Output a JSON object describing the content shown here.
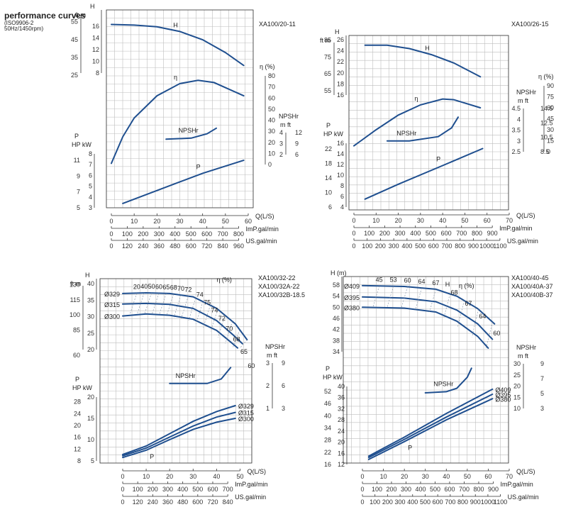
{
  "header": {
    "title": "performance curves",
    "standard": "(ISO9906-2",
    "condition": "50Hz/1450rpm)"
  },
  "chart_data": [
    {
      "type": "line",
      "model": [
        "XA100/20-11"
      ],
      "q_axis": {
        "label": "Q(L/S)",
        "min": 0,
        "max": 60,
        "ticks": [
          0,
          10,
          20,
          30,
          40,
          50,
          60
        ]
      },
      "imp_axis": {
        "label": "ImP.gal/min",
        "ticks": [
          0,
          100,
          200,
          300,
          400,
          500,
          600,
          700,
          800
        ]
      },
      "us_axis": {
        "label": "US.gal/min",
        "ticks": [
          0,
          120,
          240,
          360,
          480,
          600,
          720,
          840,
          960
        ]
      },
      "h_axis": {
        "title": "H",
        "units": [
          "ft",
          "m"
        ],
        "m_ticks": [
          8,
          10,
          12,
          14,
          16
        ],
        "ft_ticks": [
          25,
          35,
          45,
          55
        ]
      },
      "eff_axis": {
        "title": "η (%)",
        "ticks": [
          0,
          10,
          20,
          30,
          40,
          50,
          60,
          70,
          80
        ]
      },
      "p_axis": {
        "title": "P",
        "units": [
          "HP",
          "kW"
        ],
        "kw_ticks": [
          3,
          4,
          5,
          6,
          7,
          8
        ],
        "hp_ticks": [
          5,
          7,
          9,
          11
        ]
      },
      "npsh_axis": {
        "title": "NPSHr",
        "units": [
          "m",
          "ft"
        ],
        "m_ticks": [
          2,
          3,
          4
        ],
        "ft_ticks": [
          6,
          9,
          12
        ]
      },
      "curves": {
        "H": [
          [
            0,
            16.3
          ],
          [
            10,
            16.2
          ],
          [
            20,
            15.9
          ],
          [
            30,
            15.1
          ],
          [
            40,
            13.7
          ],
          [
            50,
            11.5
          ],
          [
            58,
            9.3
          ]
        ],
        "eff": [
          [
            0,
            1
          ],
          [
            5,
            25
          ],
          [
            10,
            42
          ],
          [
            20,
            62
          ],
          [
            30,
            73
          ],
          [
            38,
            76
          ],
          [
            45,
            74
          ],
          [
            58,
            62
          ]
        ],
        "npsh": [
          [
            24,
            3.4
          ],
          [
            35,
            3.5
          ],
          [
            42,
            3.9
          ],
          [
            46,
            4.4
          ]
        ],
        "P": [
          [
            5,
            3.4
          ],
          [
            20,
            4.6
          ],
          [
            40,
            6.2
          ],
          [
            58,
            7.4
          ]
        ]
      },
      "curve_labels": {
        "H": "H",
        "eff": "η",
        "npsh": "NPSHr",
        "P": "P"
      }
    },
    {
      "type": "line",
      "model": [
        "XA100/26-15"
      ],
      "q_axis": {
        "label": "Q(L/S)",
        "min": 0,
        "max": 70,
        "ticks": [
          0,
          10,
          20,
          30,
          40,
          50,
          60,
          70
        ]
      },
      "imp_axis": {
        "label": "ImP.gal/min",
        "ticks": [
          0,
          100,
          200,
          300,
          400,
          500,
          600,
          700,
          800,
          900
        ]
      },
      "us_axis": {
        "label": "US.gal/min",
        "ticks": [
          0,
          100,
          200,
          300,
          400,
          500,
          600,
          700,
          800,
          900,
          1000,
          1100
        ]
      },
      "h_axis": {
        "title": "H",
        "units": [
          "ft",
          "m"
        ],
        "m_ticks": [
          16,
          18,
          20,
          22,
          24,
          26
        ],
        "ft_ticks": [
          55,
          65,
          75,
          85
        ]
      },
      "eff_axis": {
        "title": "η (%)",
        "ticks": [
          0,
          15,
          30,
          45,
          60,
          75,
          90
        ]
      },
      "p_axis": {
        "title": "P",
        "units": [
          "HP",
          "kW"
        ],
        "kw_ticks": [
          4,
          6,
          8,
          10,
          12,
          14,
          16
        ],
        "hp_ticks": [
          6,
          10,
          14,
          18,
          22
        ]
      },
      "npsh_axis": {
        "title": "NPSHr",
        "units": [
          "m",
          "ft"
        ],
        "m_ticks": [
          2.5,
          3.0,
          3.5,
          4.0,
          4.5
        ],
        "ft_ticks": [
          8.5,
          10.5,
          12.5,
          14.5
        ]
      },
      "curves": {
        "H": [
          [
            5,
            25.0
          ],
          [
            15,
            25.0
          ],
          [
            25,
            24.4
          ],
          [
            35,
            23.3
          ],
          [
            45,
            21.8
          ],
          [
            57,
            19.3
          ]
        ],
        "eff": [
          [
            0,
            8
          ],
          [
            10,
            30
          ],
          [
            20,
            50
          ],
          [
            30,
            64
          ],
          [
            40,
            72
          ],
          [
            45,
            71
          ],
          [
            57,
            60
          ]
        ],
        "npsh": [
          [
            15,
            3.0
          ],
          [
            25,
            3.0
          ],
          [
            38,
            3.2
          ],
          [
            44,
            3.6
          ],
          [
            47,
            4.1
          ]
        ],
        "P": [
          [
            5,
            5.5
          ],
          [
            20,
            8.3
          ],
          [
            40,
            11.8
          ],
          [
            58,
            15.0
          ]
        ]
      },
      "curve_labels": {
        "H": "H",
        "eff": "η",
        "npsh": "NPSHr",
        "P": "P"
      }
    },
    {
      "type": "line",
      "model": [
        "XA100/32-22",
        "XA100/32A-22",
        "XA100/32B-18.5"
      ],
      "q_axis": {
        "label": "Q(L/S)",
        "min": 0,
        "max": 55,
        "ticks": [
          0,
          10,
          20,
          30,
          40,
          50
        ]
      },
      "imp_axis": {
        "label": "ImP.gal/min",
        "ticks": [
          0,
          100,
          200,
          300,
          400,
          500,
          600,
          700
        ]
      },
      "us_axis": {
        "label": "US.gal/min",
        "ticks": [
          0,
          120,
          240,
          360,
          480,
          600,
          720,
          840
        ]
      },
      "h_axis": {
        "title": "H",
        "units": [
          "ft",
          "m"
        ],
        "m_ticks": [
          20,
          25,
          30,
          35,
          40
        ],
        "ft_ticks": [
          60,
          85,
          100,
          115,
          130
        ]
      },
      "eff_axis": {
        "title": "η (%)"
      },
      "p_axis": {
        "title": "P",
        "units": [
          "HP",
          "kW"
        ],
        "kw_ticks": [
          5,
          10,
          15,
          20
        ],
        "hp_ticks": [
          8,
          12,
          16,
          20,
          24,
          28
        ]
      },
      "npsh_axis": {
        "title": "NPSHr",
        "units": [
          "m",
          "ft"
        ],
        "m_ticks": [
          1,
          2,
          3
        ],
        "ft_ticks": [
          3,
          6,
          9
        ]
      },
      "curves": {
        "H329": [
          [
            0,
            37.0
          ],
          [
            10,
            37.2
          ],
          [
            20,
            37.0
          ],
          [
            30,
            36.0
          ],
          [
            40,
            32.5
          ],
          [
            48,
            27.8
          ],
          [
            53,
            23.0
          ]
        ],
        "H315": [
          [
            0,
            33.8
          ],
          [
            10,
            34.0
          ],
          [
            20,
            33.7
          ],
          [
            30,
            32.5
          ],
          [
            40,
            28.8
          ],
          [
            47,
            24.5
          ],
          [
            51,
            21.8
          ]
        ],
        "H300": [
          [
            0,
            30.2
          ],
          [
            10,
            30.8
          ],
          [
            20,
            30.4
          ],
          [
            30,
            29.2
          ],
          [
            40,
            25.8
          ],
          [
            46,
            22.3
          ],
          [
            49,
            20.5
          ]
        ],
        "npsh": [
          [
            20,
            2.1
          ],
          [
            28,
            2.1
          ],
          [
            36,
            2.1
          ],
          [
            42,
            2.3
          ],
          [
            46,
            2.8
          ]
        ],
        "P329": [
          [
            0,
            6.5
          ],
          [
            10,
            8.5
          ],
          [
            20,
            11.4
          ],
          [
            30,
            14.3
          ],
          [
            40,
            16.6
          ],
          [
            48,
            18.0
          ]
        ],
        "P315": [
          [
            0,
            6.2
          ],
          [
            10,
            8.0
          ],
          [
            20,
            10.6
          ],
          [
            30,
            13.2
          ],
          [
            40,
            15.3
          ],
          [
            48,
            16.4
          ]
        ],
        "P300": [
          [
            0,
            5.8
          ],
          [
            10,
            7.5
          ],
          [
            20,
            10.0
          ],
          [
            30,
            12.4
          ],
          [
            40,
            14.1
          ],
          [
            48,
            15.0
          ]
        ]
      },
      "curve_labels": {
        "H329": "Ø329",
        "H315": "Ø315",
        "H300": "Ø300",
        "npsh": "NPSHr",
        "P329": "Ø329",
        "P315": "Ø315",
        "P300": "Ø300",
        "P": "P"
      },
      "eff_labels": [
        "20",
        "40",
        "50",
        "60",
        "65",
        "68",
        "70",
        "72",
        "74",
        "75",
        "74",
        "72",
        "70",
        "68",
        "65",
        "60"
      ]
    },
    {
      "type": "line",
      "model": [
        "XA100/40-45",
        "XA100/40A-37",
        "XA100/40B-37"
      ],
      "q_axis": {
        "label": "Q(L/S)",
        "min": 0,
        "max": 70,
        "ticks": [
          0,
          10,
          20,
          30,
          40,
          50,
          60,
          70
        ]
      },
      "imp_axis": {
        "label": "ImP.gal/min",
        "ticks": [
          0,
          100,
          200,
          300,
          400,
          500,
          600,
          700,
          800,
          900
        ]
      },
      "us_axis": {
        "label": "US.gal/min",
        "ticks": [
          0,
          100,
          200,
          300,
          400,
          500,
          600,
          700,
          800,
          900,
          1000,
          1100
        ]
      },
      "h_axis": {
        "title": "H (m)",
        "m_ticks": [
          34,
          38,
          42,
          46,
          50,
          54,
          58
        ]
      },
      "eff_axis": {
        "title": "η (%)"
      },
      "p_axis": {
        "title": "P",
        "units": [
          "HP",
          "kW"
        ],
        "kw_ticks": [
          12,
          16,
          20,
          24,
          28,
          32,
          36,
          40
        ],
        "hp_ticks": [
          16,
          22,
          28,
          34,
          40,
          46,
          52
        ]
      },
      "npsh_axis": {
        "title": "NPSHr",
        "units": [
          "m",
          "ft"
        ],
        "m_ticks": [
          10,
          15,
          20,
          25,
          30
        ],
        "ft_ticks": [
          3,
          5,
          7,
          9
        ]
      },
      "curves": {
        "H409": [
          [
            0,
            57.8
          ],
          [
            20,
            57.5
          ],
          [
            35,
            56.5
          ],
          [
            45,
            54.0
          ],
          [
            55,
            49.5
          ],
          [
            63,
            44.0
          ]
        ],
        "H395": [
          [
            0,
            53.7
          ],
          [
            20,
            53.3
          ],
          [
            35,
            52.0
          ],
          [
            45,
            49.0
          ],
          [
            55,
            44.0
          ],
          [
            62,
            38.5
          ]
        ],
        "H380": [
          [
            0,
            50.0
          ],
          [
            20,
            49.7
          ],
          [
            35,
            48.3
          ],
          [
            45,
            45.0
          ],
          [
            55,
            39.5
          ],
          [
            60,
            35.3
          ]
        ],
        "npsh": [
          [
            30,
            17
          ],
          [
            40,
            17.5
          ],
          [
            45,
            19
          ],
          [
            50,
            24
          ],
          [
            52,
            28
          ]
        ],
        "P409": [
          [
            3,
            15.0
          ],
          [
            20,
            21.8
          ],
          [
            40,
            30.3
          ],
          [
            62,
            39.0
          ]
        ],
        "P395": [
          [
            3,
            14.5
          ],
          [
            20,
            21.0
          ],
          [
            40,
            29.0
          ],
          [
            62,
            37.2
          ]
        ],
        "P380": [
          [
            3,
            13.8
          ],
          [
            20,
            20.2
          ],
          [
            40,
            28.0
          ],
          [
            62,
            35.6
          ]
        ]
      },
      "curve_labels": {
        "H409": "Ø409",
        "H395": "Ø395",
        "H380": "Ø380",
        "H": "H",
        "npsh": "NPSHr",
        "P409": "Ø409",
        "P395": "Ø395",
        "P380": "Ø380",
        "P": "P"
      },
      "eff_labels": [
        "45",
        "53",
        "60",
        "64",
        "67",
        "68",
        "67",
        "64",
        "60"
      ]
    }
  ]
}
